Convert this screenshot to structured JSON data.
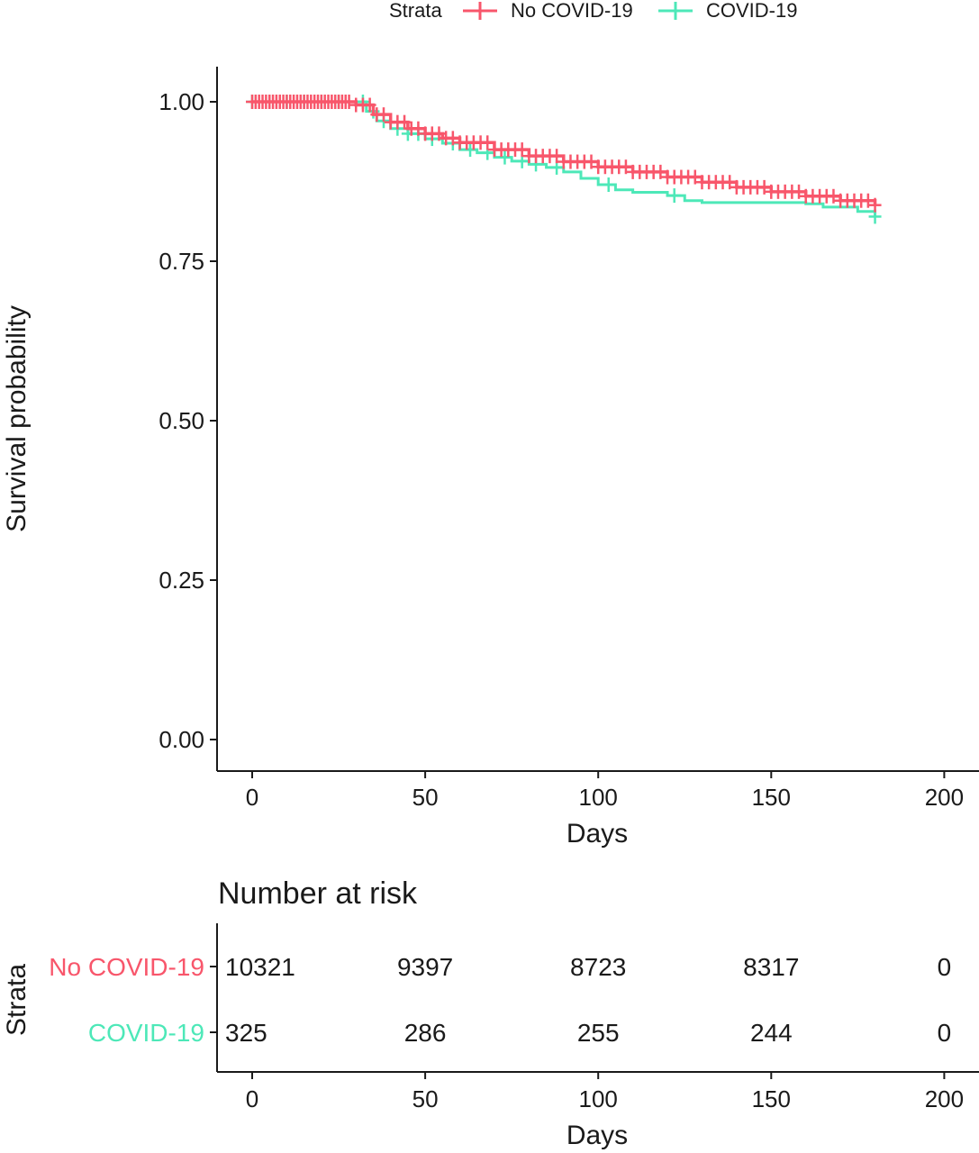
{
  "chart_data": [
    {
      "type": "line",
      "subtype": "kaplan-meier survival curve",
      "title": "",
      "xlabel": "Days",
      "ylabel": "Survival probability",
      "xlim": [
        -10,
        210
      ],
      "ylim": [
        -0.05,
        1.05
      ],
      "x_ticks": [
        0,
        50,
        100,
        150,
        200
      ],
      "y_ticks": [
        0.0,
        0.25,
        0.5,
        0.75,
        1.0
      ],
      "x_tick_labels": [
        "0",
        "50",
        "100",
        "150",
        "200"
      ],
      "y_tick_labels": [
        "0.00",
        "0.25",
        "0.50",
        "0.75",
        "1.00"
      ],
      "grid": false,
      "legend": {
        "title": "Strata",
        "placement": "top",
        "entries": [
          "No COVID-19",
          "COVID-19"
        ]
      },
      "series": [
        {
          "name": "No COVID-19",
          "color": "#f8566b",
          "step_points": [
            [
              0,
              1.0
            ],
            [
              28,
              1.0
            ],
            [
              30,
              0.995
            ],
            [
              35,
              0.98
            ],
            [
              40,
              0.968
            ],
            [
              45,
              0.958
            ],
            [
              50,
              0.95
            ],
            [
              55,
              0.943
            ],
            [
              60,
              0.936
            ],
            [
              70,
              0.925
            ],
            [
              80,
              0.915
            ],
            [
              90,
              0.906
            ],
            [
              100,
              0.898
            ],
            [
              110,
              0.89
            ],
            [
              120,
              0.882
            ],
            [
              130,
              0.874
            ],
            [
              140,
              0.866
            ],
            [
              150,
              0.859
            ],
            [
              160,
              0.852
            ],
            [
              170,
              0.845
            ],
            [
              180,
              0.838
            ]
          ],
          "censor_days": [
            0,
            1,
            2,
            3,
            4,
            5,
            6,
            7,
            8,
            9,
            10,
            11,
            12,
            13,
            14,
            15,
            16,
            17,
            18,
            19,
            20,
            21,
            22,
            23,
            24,
            25,
            26,
            27,
            28,
            30,
            32,
            34,
            36,
            38,
            40,
            42,
            44,
            46,
            48,
            50,
            52,
            54,
            56,
            58,
            60,
            62,
            64,
            66,
            68,
            70,
            72,
            74,
            76,
            78,
            80,
            82,
            84,
            86,
            88,
            90,
            92,
            94,
            96,
            98,
            100,
            102,
            104,
            106,
            108,
            110,
            112,
            114,
            116,
            118,
            120,
            122,
            124,
            126,
            128,
            130,
            132,
            134,
            136,
            138,
            140,
            142,
            144,
            146,
            148,
            150,
            152,
            154,
            156,
            158,
            160,
            162,
            164,
            166,
            168,
            170,
            172,
            174,
            176,
            178,
            180
          ]
        },
        {
          "name": "COVID-19",
          "color": "#4de8b8",
          "step_points": [
            [
              0,
              1.0
            ],
            [
              30,
              1.0
            ],
            [
              33,
              0.985
            ],
            [
              36,
              0.97
            ],
            [
              40,
              0.958
            ],
            [
              45,
              0.95
            ],
            [
              50,
              0.942
            ],
            [
              55,
              0.935
            ],
            [
              60,
              0.925
            ],
            [
              65,
              0.92
            ],
            [
              70,
              0.913
            ],
            [
              75,
              0.907
            ],
            [
              80,
              0.902
            ],
            [
              85,
              0.897
            ],
            [
              90,
              0.89
            ],
            [
              95,
              0.88
            ],
            [
              100,
              0.87
            ],
            [
              105,
              0.862
            ],
            [
              110,
              0.858
            ],
            [
              120,
              0.853
            ],
            [
              125,
              0.845
            ],
            [
              130,
              0.842
            ],
            [
              150,
              0.842
            ],
            [
              160,
              0.84
            ],
            [
              165,
              0.835
            ],
            [
              175,
              0.828
            ],
            [
              180,
              0.82
            ]
          ],
          "censor_days": [
            0,
            5,
            10,
            15,
            20,
            25,
            32,
            35,
            38,
            42,
            45,
            48,
            52,
            58,
            63,
            68,
            73,
            78,
            82,
            88,
            103,
            122,
            180
          ]
        }
      ]
    },
    {
      "type": "table",
      "title": "Number at risk",
      "xlabel": "Days",
      "ylabel": "Strata",
      "x_ticks": [
        0,
        50,
        100,
        150,
        200
      ],
      "x_tick_labels": [
        "0",
        "50",
        "100",
        "150",
        "200"
      ],
      "rows": [
        {
          "name": "No COVID-19",
          "color": "#f8566b",
          "values": [
            "10321",
            "9397",
            "8723",
            "8317",
            "0"
          ]
        },
        {
          "name": "COVID-19",
          "color": "#4de8b8",
          "values": [
            "325",
            "286",
            "255",
            "244",
            "0"
          ]
        }
      ]
    }
  ]
}
